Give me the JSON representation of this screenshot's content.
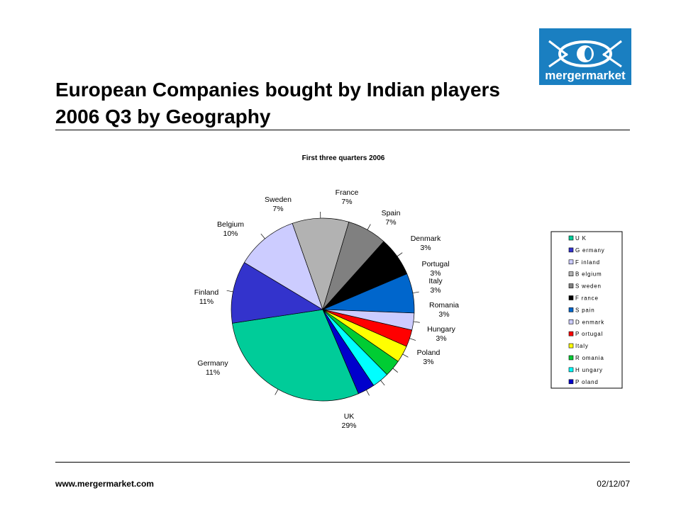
{
  "header": {
    "title_line1": "European Companies bought by Indian players",
    "title_line2": "2006 Q3 by Geography",
    "logo_text": "mergermarket"
  },
  "footer": {
    "website": "www.mergermarket.com",
    "date": "02/12/07"
  },
  "chart_data": {
    "type": "pie",
    "title": "First three quarters 2006",
    "legend_position": "right",
    "slices": [
      {
        "label": "UK",
        "legend": "U K",
        "value": 29,
        "pct_label": "29%",
        "color": "#00CC99"
      },
      {
        "label": "Germany",
        "legend": "G ermany",
        "value": 11,
        "pct_label": "11%",
        "color": "#3333CC"
      },
      {
        "label": "Finland",
        "legend": "F inland",
        "value": 11,
        "pct_label": "11%",
        "color": "#CCCCFF"
      },
      {
        "label": "Belgium",
        "legend": "B elgium",
        "value": 10,
        "pct_label": "10%",
        "color": "#B2B2B2"
      },
      {
        "label": "Sweden",
        "legend": "S weden",
        "value": 7,
        "pct_label": "7%",
        "color": "#808080"
      },
      {
        "label": "France",
        "legend": "F rance",
        "value": 7,
        "pct_label": "7%",
        "color": "#000000"
      },
      {
        "label": "Spain",
        "legend": "S pain",
        "value": 7,
        "pct_label": "7%",
        "color": "#0066CC"
      },
      {
        "label": "Denmark",
        "legend": "D enmark",
        "value": 3,
        "pct_label": "3%",
        "color": "#CCCCFF"
      },
      {
        "label": "Portugal",
        "legend": "P ortugal",
        "value": 3,
        "pct_label": "3%",
        "color": "#FF0000"
      },
      {
        "label": "Italy",
        "legend": "Italy",
        "value": 3,
        "pct_label": "3%",
        "color": "#FFFF00"
      },
      {
        "label": "Romania",
        "legend": "R omania",
        "value": 3,
        "pct_label": "3%",
        "color": "#00CC33"
      },
      {
        "label": "Hungary",
        "legend": "H ungary",
        "value": 3,
        "pct_label": "3%",
        "color": "#00FFFF"
      },
      {
        "label": "Poland",
        "legend": "P oland",
        "value": 3,
        "pct_label": "3%",
        "color": "#0000CC"
      }
    ]
  }
}
